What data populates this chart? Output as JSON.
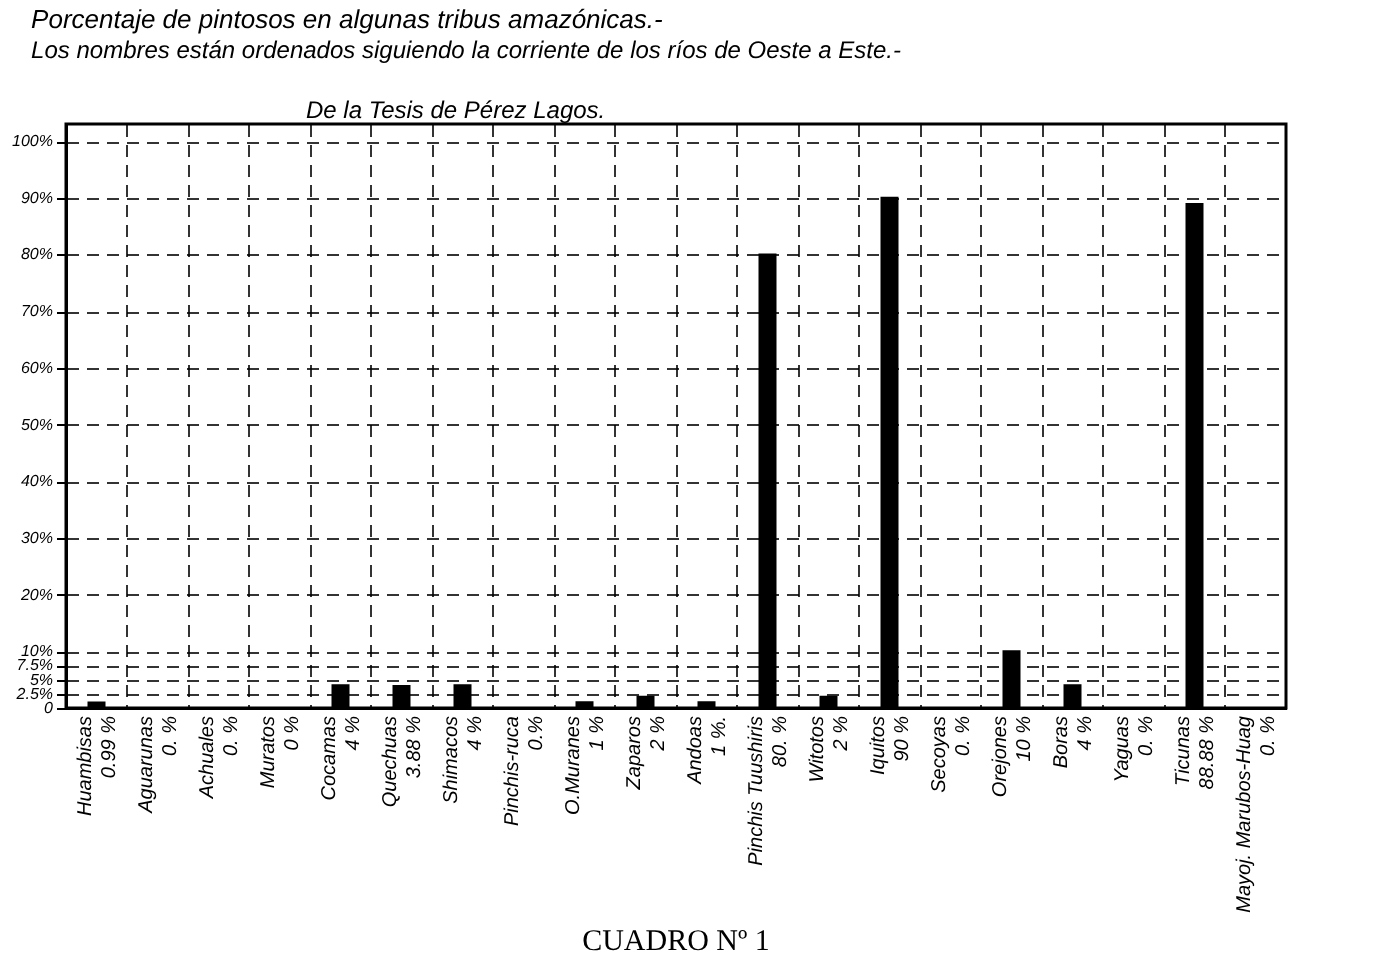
{
  "chart_data": {
    "type": "bar",
    "title": "Porcentaje de pintosos en algunas tribus amazónicas.-",
    "subtitle": "Los nombres están ordenados siguiendo la corriente de los ríos de Oeste a Este.-",
    "annotations": [
      "De la Tesis de Pérez Lagos.",
      "CUADRO Nº 1"
    ],
    "categories": [
      "Huambisas",
      "Aguarunas",
      "Achuales",
      "Muratos",
      "Cocamas",
      "Quechuas",
      "Shimacos",
      "Pinchis-ruca",
      "O.Muranes",
      "Zaparos",
      "Andoas",
      "Pinchis Tuushiris",
      "Witotos",
      "Iquitos",
      "Secoyas",
      "Orejones",
      "Boras",
      "Yaguas",
      "Ticunas",
      "Mayoj. Marubos-Huag"
    ],
    "values": [
      0.99,
      0,
      0,
      0,
      4,
      3.88,
      4,
      0,
      1,
      2,
      1,
      80,
      2,
      90,
      0,
      10,
      4,
      0,
      88.88,
      0
    ],
    "value_labels": [
      "0.99 %",
      "0. %",
      "0. %",
      "0 %",
      "4 %",
      "3.88 %",
      "4 %",
      "0.%",
      "1 %",
      "2 %",
      "1 %.",
      "80. %",
      "2 %",
      "90 %",
      "0. %",
      "10 %",
      "4 %",
      "0. %",
      "88.88 %",
      "0. %"
    ],
    "color": "#000000",
    "ylim": [
      0,
      103
    ],
    "yticks": [
      0,
      {
        "value": 2.5,
        "label": "2.5%"
      },
      {
        "value": 5,
        "label": "5%"
      },
      {
        "value": 7.5,
        "label": "7.5%"
      },
      {
        "value": 10,
        "label": "10%"
      },
      {
        "value": 20,
        "label": "20%"
      },
      {
        "value": 30,
        "label": "30%"
      },
      {
        "value": 40,
        "label": "40%"
      },
      {
        "value": 50,
        "label": "50%"
      },
      {
        "value": 60,
        "label": "60%"
      },
      {
        "value": 70,
        "label": "70%"
      },
      {
        "value": 80,
        "label": "80%"
      },
      {
        "value": 90,
        "label": "90%"
      },
      {
        "value": 100,
        "label": "100%"
      }
    ],
    "grid": true,
    "tick_labels": "y"
  }
}
